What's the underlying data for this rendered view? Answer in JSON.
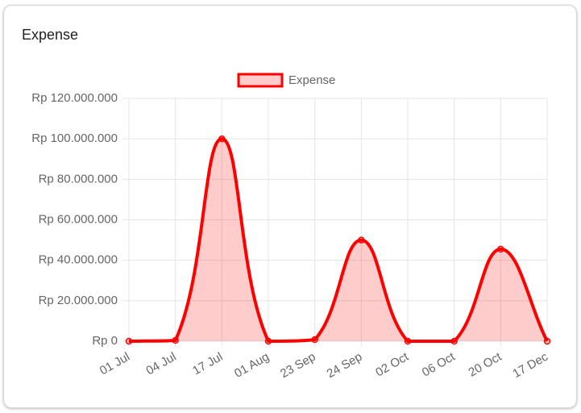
{
  "chart_data": {
    "type": "line",
    "title": "Expense",
    "categories": [
      "01 Jul",
      "04 Jul",
      "17 Jul",
      "01 Aug",
      "23 Sep",
      "24 Sep",
      "02 Oct",
      "06 Oct",
      "20 Oct",
      "17 Dec"
    ],
    "series": [
      {
        "name": "Expense",
        "color": "#ff0000",
        "fill": "rgba(255,0,0,0.2)",
        "values": [
          0,
          400000,
          100000000,
          0,
          800000,
          50000000,
          0,
          0,
          45500000,
          0
        ]
      }
    ],
    "ylim": [
      0,
      120000000
    ],
    "yticks": [
      {
        "value": 0,
        "label": "Rp 0"
      },
      {
        "value": 20000000,
        "label": "Rp 20.000.000"
      },
      {
        "value": 40000000,
        "label": "Rp 40.000.000"
      },
      {
        "value": 60000000,
        "label": "Rp 60.000.000"
      },
      {
        "value": 80000000,
        "label": "Rp 80.000.000"
      },
      {
        "value": 100000000,
        "label": "Rp 100.000.000"
      },
      {
        "value": 120000000,
        "label": "Rp 120.000.000"
      }
    ],
    "grid": true,
    "legend": "top"
  }
}
